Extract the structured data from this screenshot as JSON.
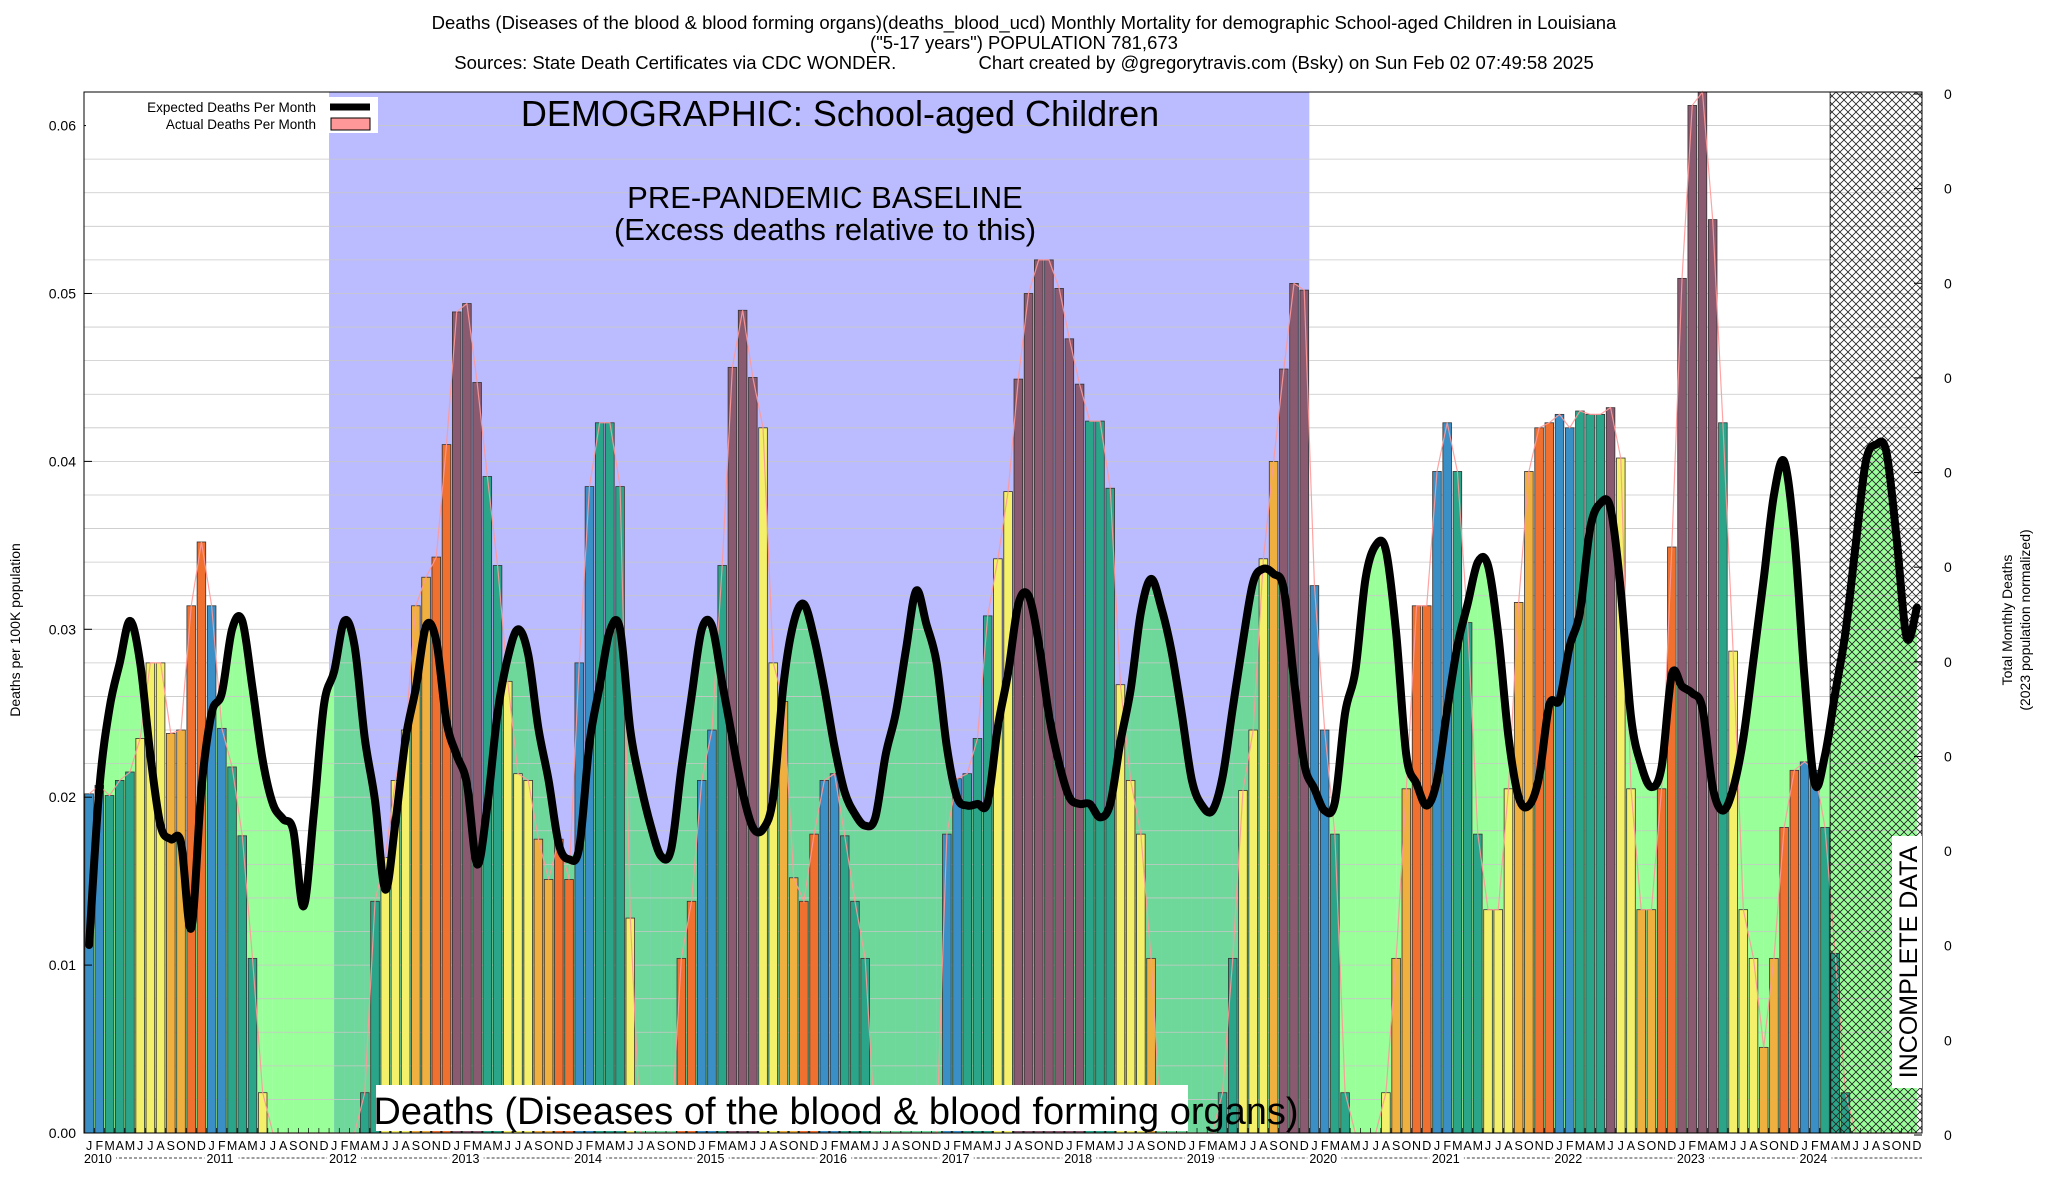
{
  "header": {
    "title_line1": "Deaths (Diseases of the blood & blood forming organs)(deaths_blood_ucd) Monthly Mortality for demographic School-aged Children in Louisiana",
    "title_line2": "(\"5-17 years\") POPULATION 781,673",
    "title_line3": "Sources: State Death Certificates via CDC WONDER.                Chart created by @gregorytravis.com (Bsky) on Sun Feb 02 07:49:58 2025"
  },
  "legend": {
    "expected_label": "Expected Deaths Per Month",
    "actual_label": "Actual Deaths Per Month"
  },
  "annotations": {
    "demographic": "DEMOGRAPHIC: School-aged Children",
    "baseline_line1": "PRE-PANDEMIC BASELINE",
    "baseline_line2": "(Excess deaths relative to this)",
    "cause": "Deaths (Diseases of the blood & blood forming organs)",
    "incomplete": "INCOMPLETE DATA"
  },
  "colors": {
    "baseline_band": "#bbbbff",
    "expected_line": "#000000",
    "actual_fill_excess": "#ff9999",
    "winter": "#3a8fc7",
    "spring": "#2aa58a",
    "summer": "#f5f06a",
    "autumn_early": "#f0b040",
    "autumn_late": "#f07030",
    "peak_dark": "#8a5a70",
    "light_green_area": "#99ff99",
    "teal_green_area": "#6ed89a"
  },
  "chart_data": {
    "type": "bar",
    "title": "Deaths (Diseases of the blood & blood forming organs)(deaths_blood_ucd) Monthly Mortality for demographic School-aged Children in Louisiana",
    "ylabel": "Deaths per 100K population",
    "y2label_line1": "Total Monthly Deaths",
    "y2label_line2": "(2023 population normalized)",
    "ylim": [
      0,
      0.062
    ],
    "y_ticks": [
      "0.00",
      "0.01",
      "0.02",
      "0.03",
      "0.04",
      "0.05",
      "0.06"
    ],
    "y_tick_values": [
      0,
      0.01,
      0.02,
      0.03,
      0.04,
      0.05,
      0.06
    ],
    "y2_ticks": [
      "0",
      "0",
      "0",
      "0",
      "0",
      "0",
      "0",
      "0",
      "0",
      "0",
      "0",
      "0"
    ],
    "month_letters": [
      "J",
      "F",
      "M",
      "A",
      "M",
      "J",
      "J",
      "A",
      "S",
      "O",
      "N",
      "D"
    ],
    "years": [
      "2010",
      "2011",
      "2012",
      "2013",
      "2014",
      "2015",
      "2016",
      "2017",
      "2018",
      "2019",
      "2020",
      "2021",
      "2022",
      "2023",
      "2024"
    ],
    "baseline_period": [
      "2012-01",
      "2019-12"
    ],
    "incomplete_from": "2024-04",
    "series": [
      {
        "name": "Actual Deaths Per Month",
        "values": [
          0.0202,
          0.0207,
          0.0201,
          0.021,
          0.0215,
          0.0235,
          0.028,
          0.028,
          0.0238,
          0.024,
          0.0314,
          0.0352,
          0.0314,
          0.0241,
          0.0218,
          0.0177,
          0.0104,
          0.0024,
          0,
          0,
          0,
          0,
          0,
          0,
          0,
          0,
          0,
          0.0024,
          0.0138,
          0.0164,
          0.021,
          0.024,
          0.0314,
          0.0331,
          0.0343,
          0.041,
          0.0489,
          0.0494,
          0.0447,
          0.0391,
          0.0338,
          0.0269,
          0.0214,
          0.021,
          0.0175,
          0.0151,
          0.0175,
          0.0151,
          0.028,
          0.0385,
          0.0423,
          0.0423,
          0.0385,
          0.0128,
          0,
          0,
          0,
          0,
          0.0104,
          0.0138,
          0.021,
          0.024,
          0.0338,
          0.0456,
          0.049,
          0.045,
          0.042,
          0.028,
          0.0257,
          0.0152,
          0.0138,
          0.0178,
          0.021,
          0.0214,
          0.0177,
          0.0138,
          0.0104,
          0,
          0,
          0,
          0,
          0,
          0,
          0,
          0.0178,
          0.0211,
          0.0214,
          0.0235,
          0.0308,
          0.0342,
          0.0382,
          0.0449,
          0.05,
          0.052,
          0.052,
          0.0503,
          0.0473,
          0.0446,
          0.0424,
          0.0424,
          0.0384,
          0.0267,
          0.021,
          0.0178,
          0.0104,
          0,
          0,
          0,
          0,
          0,
          0,
          0.0024,
          0.0104,
          0.0204,
          0.024,
          0.0342,
          0.04,
          0.0455,
          0.0506,
          0.0502,
          0.0326,
          0.024,
          0.0178,
          0.0024,
          0,
          0,
          0,
          0.0024,
          0.0104,
          0.0205,
          0.0314,
          0.0314,
          0.0394,
          0.0423,
          0.0394,
          0.0304,
          0.0178,
          0.0133,
          0.0133,
          0.0205,
          0.0316,
          0.0394,
          0.042,
          0.0423,
          0.0428,
          0.042,
          0.043,
          0.0428,
          0.0428,
          0.0432,
          0.0402,
          0.0205,
          0.0133,
          0.0133,
          0.0205,
          0.0349,
          0.0509,
          0.0612,
          0.062,
          0.0544,
          0.0423,
          0.0287,
          0.0133,
          0.0104,
          0.0051,
          0.0104,
          0.0182,
          0.0216,
          0.0221,
          0.0216,
          0.0182,
          0.0107,
          0.0024,
          0,
          0,
          0,
          0,
          0,
          0,
          0
        ]
      },
      {
        "name": "Expected Deaths Per Month",
        "values": [
          0.0112,
          0.0205,
          0.0253,
          0.028,
          0.0305,
          0.028,
          0.0225,
          0.0183,
          0.0175,
          0.0173,
          0.0122,
          0.0205,
          0.025,
          0.0262,
          0.03,
          0.0305,
          0.0265,
          0.0222,
          0.0196,
          0.0187,
          0.018,
          0.0135,
          0.019,
          0.0255,
          0.0275,
          0.0305,
          0.029,
          0.0235,
          0.0198,
          0.0145,
          0.0185,
          0.0235,
          0.0265,
          0.0302,
          0.0293,
          0.0245,
          0.0225,
          0.0208,
          0.016,
          0.0195,
          0.025,
          0.0283,
          0.03,
          0.0285,
          0.0241,
          0.021,
          0.0172,
          0.0163,
          0.017,
          0.0232,
          0.0266,
          0.0299,
          0.03,
          0.024,
          0.0208,
          0.0183,
          0.0165,
          0.0169,
          0.0217,
          0.026,
          0.03,
          0.0302,
          0.0268,
          0.0235,
          0.0203,
          0.0182,
          0.0181,
          0.02,
          0.0267,
          0.0304,
          0.0315,
          0.0295,
          0.0265,
          0.023,
          0.0203,
          0.019,
          0.0183,
          0.0188,
          0.0225,
          0.025,
          0.0288,
          0.0323,
          0.0303,
          0.028,
          0.023,
          0.02,
          0.0195,
          0.0196,
          0.0197,
          0.0242,
          0.0274,
          0.0315,
          0.032,
          0.0292,
          0.0249,
          0.022,
          0.02,
          0.0196,
          0.0196,
          0.0188,
          0.0196,
          0.0233,
          0.0264,
          0.031,
          0.033,
          0.0313,
          0.0287,
          0.025,
          0.021,
          0.0195,
          0.0192,
          0.0212,
          0.0253,
          0.0293,
          0.0328,
          0.0336,
          0.0333,
          0.0324,
          0.027,
          0.022,
          0.0205,
          0.0192,
          0.0197,
          0.025,
          0.0275,
          0.033,
          0.035,
          0.0347,
          0.0298,
          0.0225,
          0.0208,
          0.0195,
          0.021,
          0.0252,
          0.029,
          0.0315,
          0.034,
          0.0338,
          0.0297,
          0.0236,
          0.02,
          0.0195,
          0.0212,
          0.0255,
          0.0258,
          0.029,
          0.031,
          0.036,
          0.0375,
          0.0372,
          0.0323,
          0.0248,
          0.0219,
          0.0206,
          0.0218,
          0.0273,
          0.0266,
          0.0262,
          0.0253,
          0.0206,
          0.0192,
          0.0205,
          0.0235,
          0.0282,
          0.033,
          0.038,
          0.04,
          0.0355,
          0.0271,
          0.0208,
          0.0225,
          0.0262,
          0.0298,
          0.035,
          0.04,
          0.041,
          0.0406,
          0.0355,
          0.0295,
          0.0313
        ]
      }
    ],
    "grid": true,
    "legend_position": "top-left"
  }
}
